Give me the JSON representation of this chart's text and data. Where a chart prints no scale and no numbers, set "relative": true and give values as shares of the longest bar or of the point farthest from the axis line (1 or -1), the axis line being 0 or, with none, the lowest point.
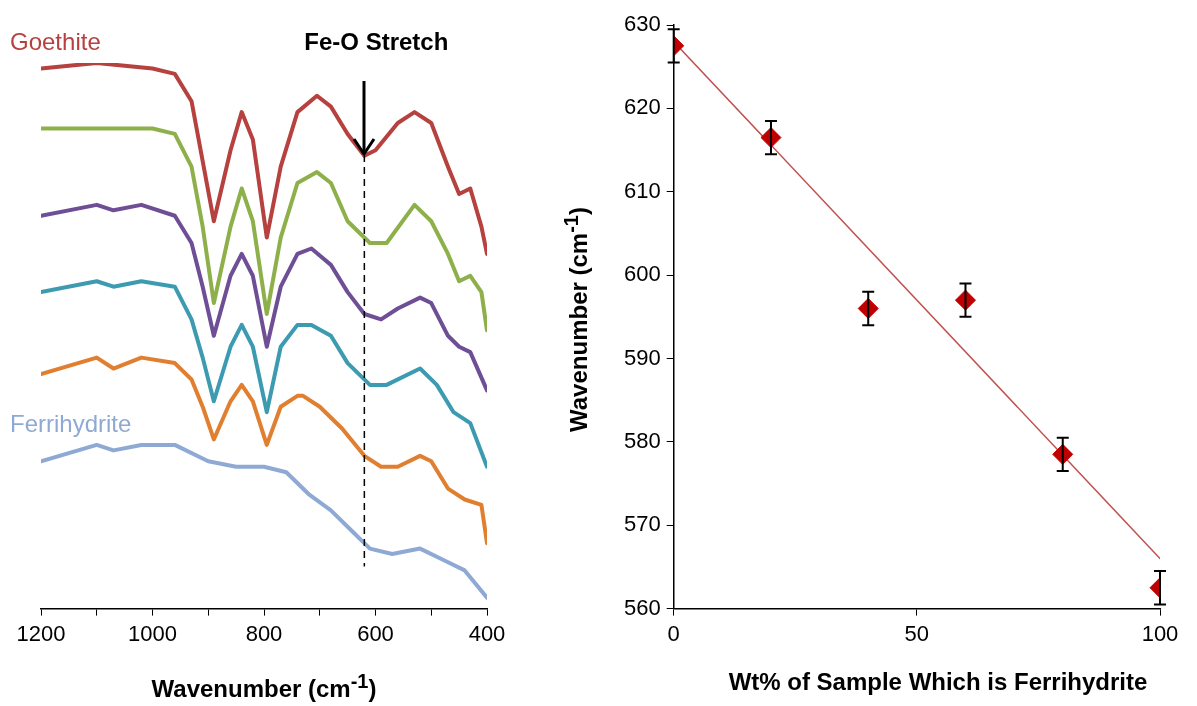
{
  "chart_data": [
    {
      "type": "line",
      "xlabel": "Wavenumber (cm$^{-1}$)",
      "relative": true,
      "tick_labels": "x",
      "xlim": [
        1200,
        400
      ],
      "xticks": [
        1200,
        {
          "value": 1100,
          "label": null
        },
        1000,
        {
          "value": 900,
          "label": null
        },
        800,
        {
          "value": 700,
          "label": null
        },
        600,
        {
          "value": 500,
          "label": null
        },
        400
      ],
      "ref_lines": [
        {
          "axis": "x",
          "value": 620,
          "label": "Fe-O Stretch",
          "line_style": "dashed",
          "color": "#000000"
        }
      ],
      "series": [
        {
          "name": "Goethite",
          "color": "#b6413e",
          "x": [
            1200,
            1100,
            1000,
            960,
            930,
            910,
            890,
            860,
            840,
            820,
            795,
            770,
            740,
            705,
            680,
            650,
            620,
            600,
            560,
            530,
            500,
            470,
            450,
            430,
            410,
            400
          ],
          "values": [
            0.99,
            1.0,
            0.99,
            0.98,
            0.93,
            0.82,
            0.71,
            0.84,
            0.91,
            0.86,
            0.68,
            0.81,
            0.91,
            0.94,
            0.92,
            0.87,
            0.83,
            0.84,
            0.89,
            0.91,
            0.89,
            0.81,
            0.76,
            0.77,
            0.7,
            0.65
          ]
        },
        {
          "color": "#8db04a",
          "x": [
            1200,
            1100,
            1000,
            960,
            930,
            910,
            890,
            860,
            840,
            820,
            795,
            770,
            740,
            705,
            680,
            650,
            610,
            580,
            530,
            500,
            470,
            450,
            430,
            410,
            400
          ],
          "values": [
            0.88,
            0.88,
            0.88,
            0.87,
            0.81,
            0.7,
            0.56,
            0.7,
            0.77,
            0.71,
            0.54,
            0.68,
            0.78,
            0.8,
            0.78,
            0.71,
            0.67,
            0.67,
            0.74,
            0.71,
            0.65,
            0.6,
            0.61,
            0.58,
            0.51
          ]
        },
        {
          "color": "#6e4f96",
          "x": [
            1200,
            1100,
            1070,
            1020,
            960,
            930,
            910,
            890,
            860,
            840,
            820,
            795,
            770,
            740,
            715,
            680,
            650,
            620,
            590,
            560,
            520,
            500,
            470,
            450,
            430,
            400
          ],
          "values": [
            0.72,
            0.74,
            0.73,
            0.74,
            0.72,
            0.67,
            0.59,
            0.5,
            0.61,
            0.65,
            0.61,
            0.48,
            0.59,
            0.65,
            0.66,
            0.63,
            0.58,
            0.54,
            0.53,
            0.55,
            0.57,
            0.56,
            0.5,
            0.48,
            0.47,
            0.4
          ]
        },
        {
          "color": "#3c9bb0",
          "x": [
            1200,
            1100,
            1070,
            1020,
            960,
            930,
            910,
            890,
            860,
            840,
            820,
            795,
            770,
            740,
            715,
            680,
            650,
            610,
            580,
            520,
            490,
            460,
            430,
            400
          ],
          "values": [
            0.58,
            0.6,
            0.59,
            0.6,
            0.59,
            0.53,
            0.46,
            0.38,
            0.48,
            0.52,
            0.48,
            0.36,
            0.48,
            0.52,
            0.52,
            0.5,
            0.45,
            0.41,
            0.41,
            0.44,
            0.41,
            0.36,
            0.34,
            0.26
          ]
        },
        {
          "color": "#e07f30",
          "x": [
            1200,
            1100,
            1070,
            1020,
            960,
            930,
            910,
            890,
            860,
            840,
            820,
            795,
            770,
            740,
            730,
            700,
            660,
            620,
            590,
            560,
            520,
            500,
            470,
            440,
            410,
            400
          ],
          "values": [
            0.43,
            0.46,
            0.44,
            0.46,
            0.45,
            0.42,
            0.37,
            0.31,
            0.38,
            0.41,
            0.38,
            0.3,
            0.37,
            0.39,
            0.39,
            0.37,
            0.33,
            0.28,
            0.26,
            0.26,
            0.28,
            0.27,
            0.22,
            0.2,
            0.19,
            0.12
          ]
        },
        {
          "name": "Ferrihydrite",
          "color": "#8fa9d5",
          "x": [
            1200,
            1100,
            1070,
            1020,
            960,
            900,
            850,
            800,
            760,
            720,
            680,
            640,
            610,
            570,
            520,
            480,
            440,
            400
          ],
          "values": [
            0.27,
            0.3,
            0.29,
            0.3,
            0.3,
            0.27,
            0.26,
            0.26,
            0.25,
            0.21,
            0.18,
            0.14,
            0.11,
            0.1,
            0.11,
            0.09,
            0.07,
            0.02
          ]
        }
      ]
    },
    {
      "type": "scatter",
      "xlabel": "Wt% of Sample Which is Ferrihydrite",
      "ylabel": "Wavenumber (cm$^{-1}$)",
      "xlim": [
        0,
        100
      ],
      "xticks": [
        0,
        50,
        100
      ],
      "ylim": [
        560,
        630
      ],
      "yticks": [
        560,
        570,
        580,
        590,
        600,
        610,
        620,
        630
      ],
      "series": [
        {
          "marker": "diamond",
          "color": "#c00000",
          "x": [
            0,
            20,
            40,
            60,
            80,
            100
          ],
          "values": [
            627.5,
            616.5,
            596,
            597,
            578.5,
            562.5
          ],
          "errors": [
            2,
            2,
            2,
            2,
            2,
            2
          ]
        },
        {
          "type": "line",
          "color": "#c0504d",
          "x": [
            0,
            100
          ],
          "values": [
            628,
            566
          ]
        }
      ]
    }
  ]
}
